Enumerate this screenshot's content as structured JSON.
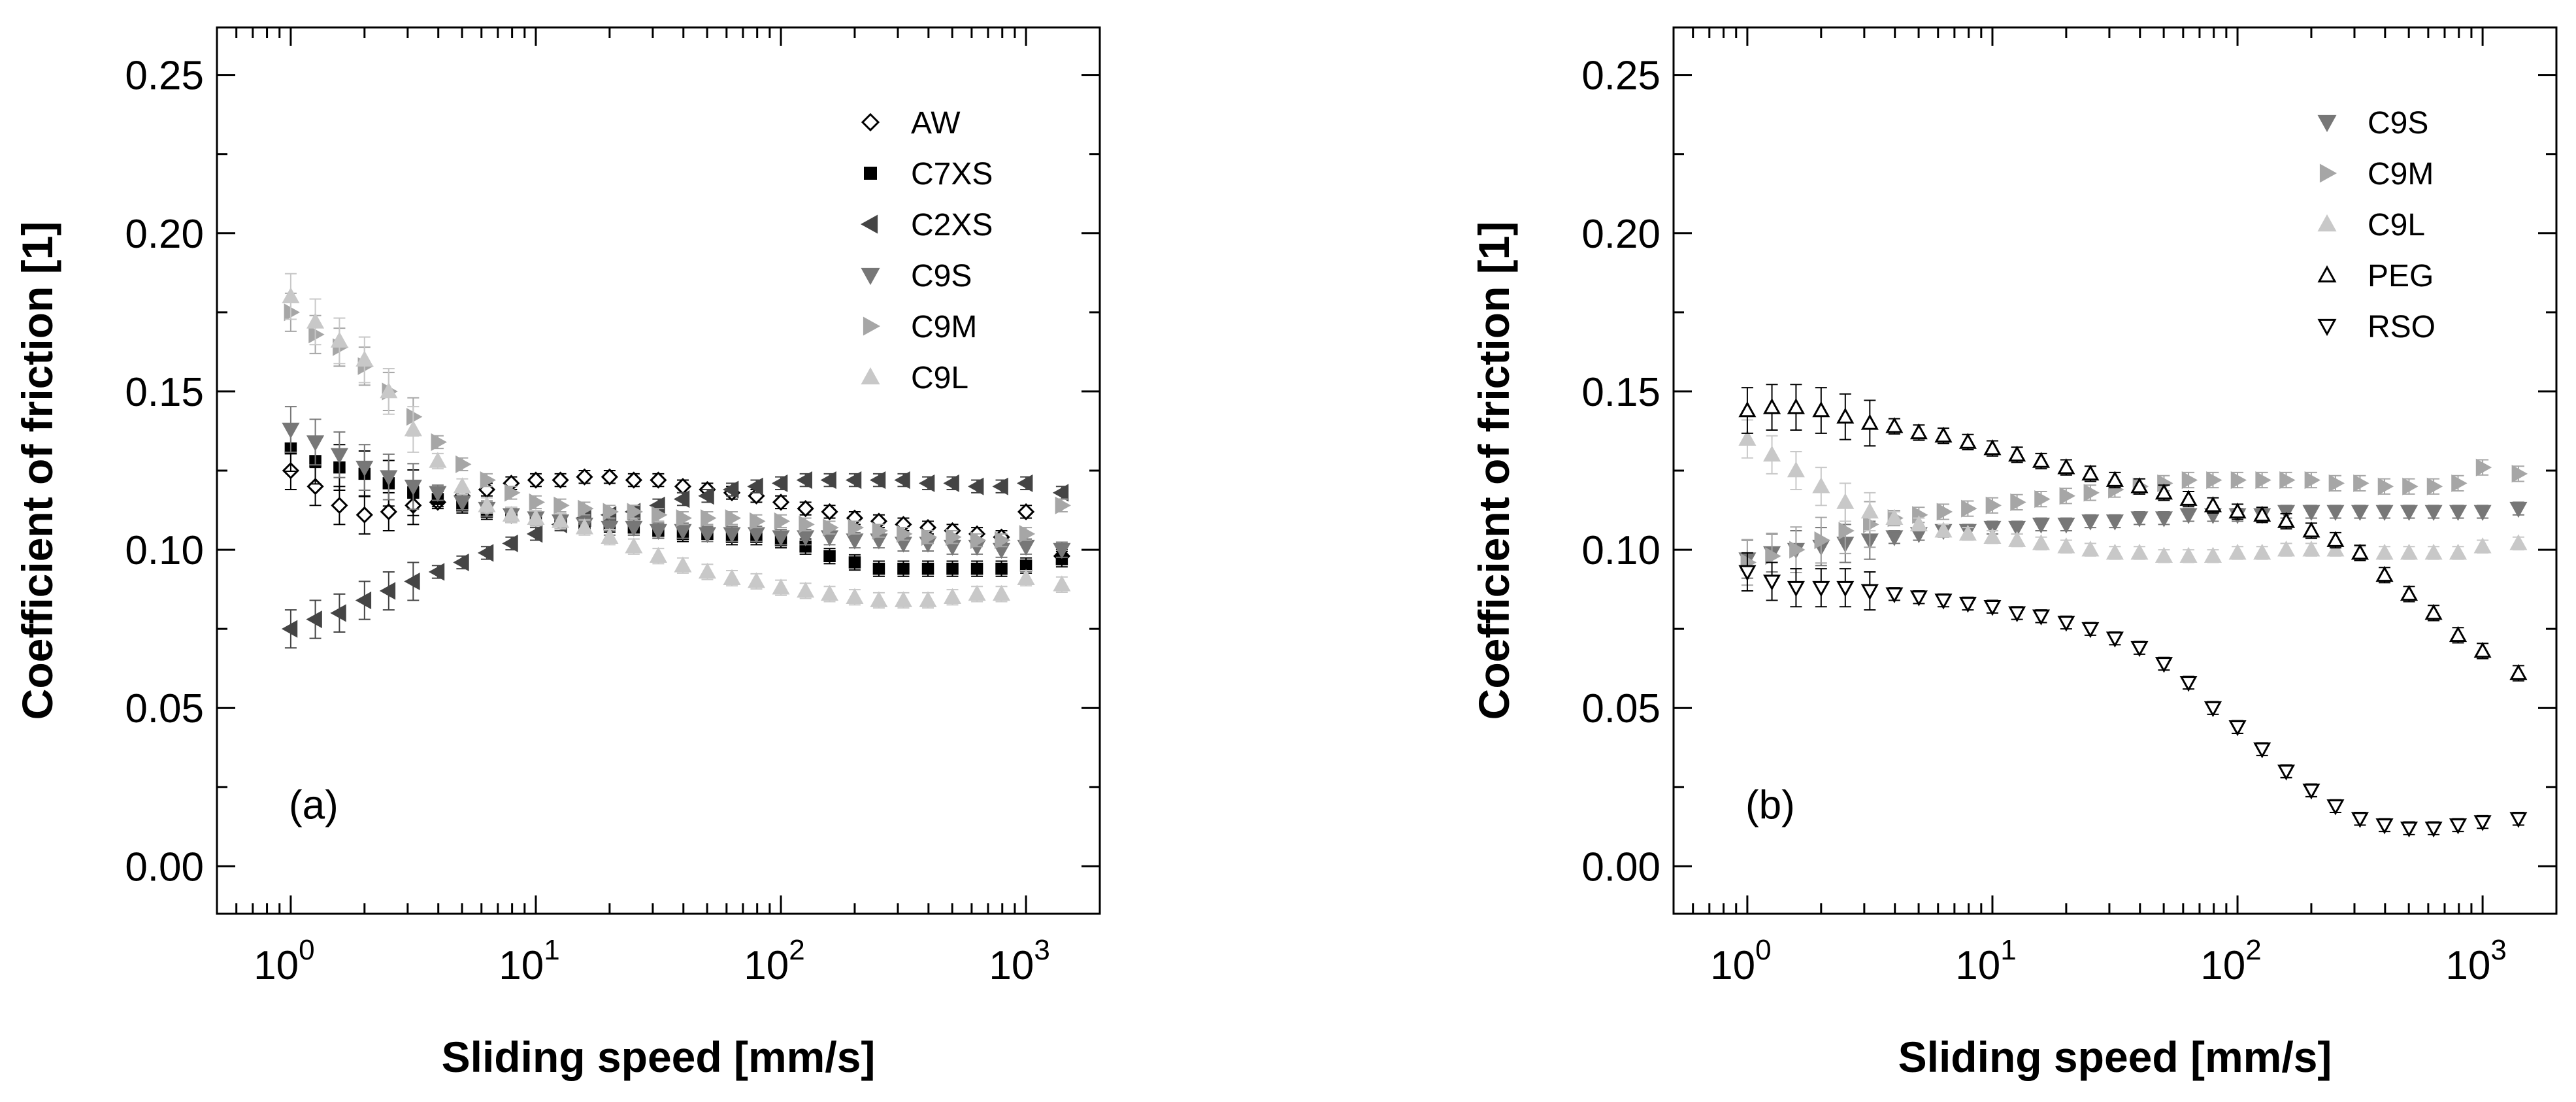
{
  "chart_data": [
    {
      "type": "scatter",
      "panel_label": "(a)",
      "xlabel": "Sliding speed [mm/s]",
      "ylabel": "Coefficient of friction [1]",
      "xscale": "log",
      "xlim": [
        0.5,
        2000
      ],
      "ylim": [
        -0.015,
        0.265
      ],
      "yticks": [
        "0.00",
        "0.05",
        "0.10",
        "0.15",
        "0.20",
        "0.25"
      ],
      "xticks": [
        {
          "base": "10",
          "exp": "0"
        },
        {
          "base": "10",
          "exp": "1"
        },
        {
          "base": "10",
          "exp": "2"
        },
        {
          "base": "10",
          "exp": "3"
        }
      ],
      "legend_position": "top-right",
      "x": [
        1.0,
        1.26,
        1.58,
        2.0,
        2.51,
        3.16,
        3.98,
        5.01,
        6.31,
        7.94,
        10.0,
        12.6,
        15.8,
        20.0,
        25.1,
        31.6,
        39.8,
        50.1,
        63.1,
        79.4,
        100,
        126,
        158,
        200,
        251,
        316,
        398,
        501,
        631,
        794,
        1000,
        1400
      ],
      "series": [
        {
          "name": "AW",
          "marker": "diamond-open",
          "color": "#000000",
          "values": [
            0.125,
            0.12,
            0.114,
            0.111,
            0.112,
            0.114,
            0.115,
            0.117,
            0.119,
            0.121,
            0.122,
            0.122,
            0.123,
            0.123,
            0.122,
            0.122,
            0.12,
            0.119,
            0.118,
            0.117,
            0.115,
            0.113,
            0.112,
            0.11,
            0.109,
            0.108,
            0.107,
            0.106,
            0.105,
            0.104,
            0.112,
            0.098
          ]
        },
        {
          "name": "C7XS",
          "marker": "square",
          "color": "#000000",
          "values": [
            0.132,
            0.128,
            0.126,
            0.124,
            0.121,
            0.118,
            0.116,
            0.114,
            0.112,
            0.111,
            0.11,
            0.109,
            0.108,
            0.108,
            0.107,
            0.106,
            0.105,
            0.105,
            0.104,
            0.104,
            0.103,
            0.101,
            0.098,
            0.096,
            0.094,
            0.094,
            0.094,
            0.094,
            0.094,
            0.094,
            0.095,
            0.097
          ]
        },
        {
          "name": "C2XS",
          "marker": "triangle-left",
          "color": "#444444",
          "values": [
            0.075,
            0.078,
            0.08,
            0.084,
            0.087,
            0.09,
            0.093,
            0.096,
            0.099,
            0.102,
            0.105,
            0.108,
            0.11,
            0.111,
            0.112,
            0.114,
            0.116,
            0.117,
            0.119,
            0.12,
            0.121,
            0.122,
            0.122,
            0.122,
            0.122,
            0.122,
            0.121,
            0.121,
            0.12,
            0.12,
            0.121,
            0.118
          ]
        },
        {
          "name": "C9S",
          "marker": "triangle-down",
          "color": "#777777",
          "values": [
            0.138,
            0.134,
            0.13,
            0.126,
            0.123,
            0.12,
            0.118,
            0.115,
            0.113,
            0.111,
            0.11,
            0.109,
            0.108,
            0.107,
            0.107,
            0.106,
            0.106,
            0.105,
            0.105,
            0.105,
            0.104,
            0.104,
            0.104,
            0.103,
            0.103,
            0.102,
            0.102,
            0.101,
            0.101,
            0.1,
            0.101,
            0.1
          ]
        },
        {
          "name": "C9M",
          "marker": "triangle-right",
          "color": "#a6a6a6",
          "values": [
            0.175,
            0.168,
            0.164,
            0.158,
            0.15,
            0.142,
            0.134,
            0.127,
            0.122,
            0.118,
            0.115,
            0.114,
            0.113,
            0.112,
            0.112,
            0.111,
            0.11,
            0.11,
            0.11,
            0.109,
            0.109,
            0.108,
            0.107,
            0.107,
            0.106,
            0.105,
            0.104,
            0.104,
            0.103,
            0.103,
            0.105,
            0.114
          ]
        },
        {
          "name": "C9L",
          "marker": "triangle-up",
          "color": "#c8c8c8",
          "values": [
            0.18,
            0.172,
            0.166,
            0.16,
            0.15,
            0.138,
            0.128,
            0.12,
            0.114,
            0.111,
            0.11,
            0.109,
            0.107,
            0.104,
            0.101,
            0.098,
            0.095,
            0.093,
            0.091,
            0.09,
            0.088,
            0.087,
            0.086,
            0.085,
            0.084,
            0.084,
            0.084,
            0.085,
            0.086,
            0.086,
            0.091,
            0.089
          ]
        }
      ]
    },
    {
      "type": "scatter",
      "panel_label": "(b)",
      "xlabel": "Sliding speed [mm/s]",
      "ylabel": "Coefficient of friction [1]",
      "xscale": "log",
      "xlim": [
        0.5,
        2000
      ],
      "ylim": [
        -0.015,
        0.265
      ],
      "yticks": [
        "0.00",
        "0.05",
        "0.10",
        "0.15",
        "0.20",
        "0.25"
      ],
      "xticks": [
        {
          "base": "10",
          "exp": "0"
        },
        {
          "base": "10",
          "exp": "1"
        },
        {
          "base": "10",
          "exp": "2"
        },
        {
          "base": "10",
          "exp": "3"
        }
      ],
      "legend_position": "top-right",
      "x": [
        1.0,
        1.26,
        1.58,
        2.0,
        2.51,
        3.16,
        3.98,
        5.01,
        6.31,
        7.94,
        10.0,
        12.6,
        15.8,
        20.0,
        25.1,
        31.6,
        39.8,
        50.1,
        63.1,
        79.4,
        100,
        126,
        158,
        200,
        251,
        316,
        398,
        501,
        631,
        794,
        1000,
        1400
      ],
      "series": [
        {
          "name": "C9S",
          "marker": "triangle-down",
          "color": "#777777",
          "values": [
            0.097,
            0.099,
            0.1,
            0.101,
            0.102,
            0.103,
            0.104,
            0.105,
            0.106,
            0.106,
            0.107,
            0.107,
            0.108,
            0.108,
            0.109,
            0.109,
            0.11,
            0.11,
            0.111,
            0.111,
            0.111,
            0.111,
            0.112,
            0.112,
            0.112,
            0.112,
            0.112,
            0.112,
            0.112,
            0.112,
            0.112,
            0.113
          ]
        },
        {
          "name": "C9M",
          "marker": "triangle-right",
          "color": "#a6a6a6",
          "values": [
            0.096,
            0.098,
            0.1,
            0.103,
            0.106,
            0.108,
            0.11,
            0.111,
            0.112,
            0.113,
            0.114,
            0.115,
            0.116,
            0.117,
            0.118,
            0.119,
            0.12,
            0.121,
            0.122,
            0.122,
            0.122,
            0.122,
            0.122,
            0.122,
            0.121,
            0.121,
            0.12,
            0.12,
            0.12,
            0.121,
            0.126,
            0.124
          ]
        },
        {
          "name": "C9L",
          "marker": "triangle-up",
          "color": "#c8c8c8",
          "values": [
            0.135,
            0.13,
            0.125,
            0.12,
            0.115,
            0.112,
            0.11,
            0.108,
            0.106,
            0.105,
            0.104,
            0.103,
            0.102,
            0.101,
            0.1,
            0.099,
            0.099,
            0.098,
            0.098,
            0.098,
            0.099,
            0.099,
            0.1,
            0.1,
            0.1,
            0.099,
            0.099,
            0.099,
            0.099,
            0.099,
            0.101,
            0.102
          ]
        },
        {
          "name": "PEG",
          "marker": "triangle-up-open",
          "color": "#000000",
          "values": [
            0.144,
            0.145,
            0.145,
            0.144,
            0.142,
            0.14,
            0.139,
            0.137,
            0.136,
            0.134,
            0.132,
            0.13,
            0.128,
            0.126,
            0.124,
            0.122,
            0.12,
            0.118,
            0.116,
            0.114,
            0.112,
            0.111,
            0.109,
            0.106,
            0.103,
            0.099,
            0.092,
            0.086,
            0.08,
            0.073,
            0.068,
            0.061
          ]
        },
        {
          "name": "RSO",
          "marker": "triangle-down-open",
          "color": "#000000",
          "values": [
            0.093,
            0.09,
            0.088,
            0.088,
            0.088,
            0.087,
            0.086,
            0.085,
            0.084,
            0.083,
            0.082,
            0.08,
            0.079,
            0.077,
            0.075,
            0.072,
            0.069,
            0.064,
            0.058,
            0.05,
            0.044,
            0.037,
            0.03,
            0.024,
            0.019,
            0.015,
            0.013,
            0.012,
            0.012,
            0.013,
            0.014,
            0.015
          ]
        }
      ]
    }
  ]
}
